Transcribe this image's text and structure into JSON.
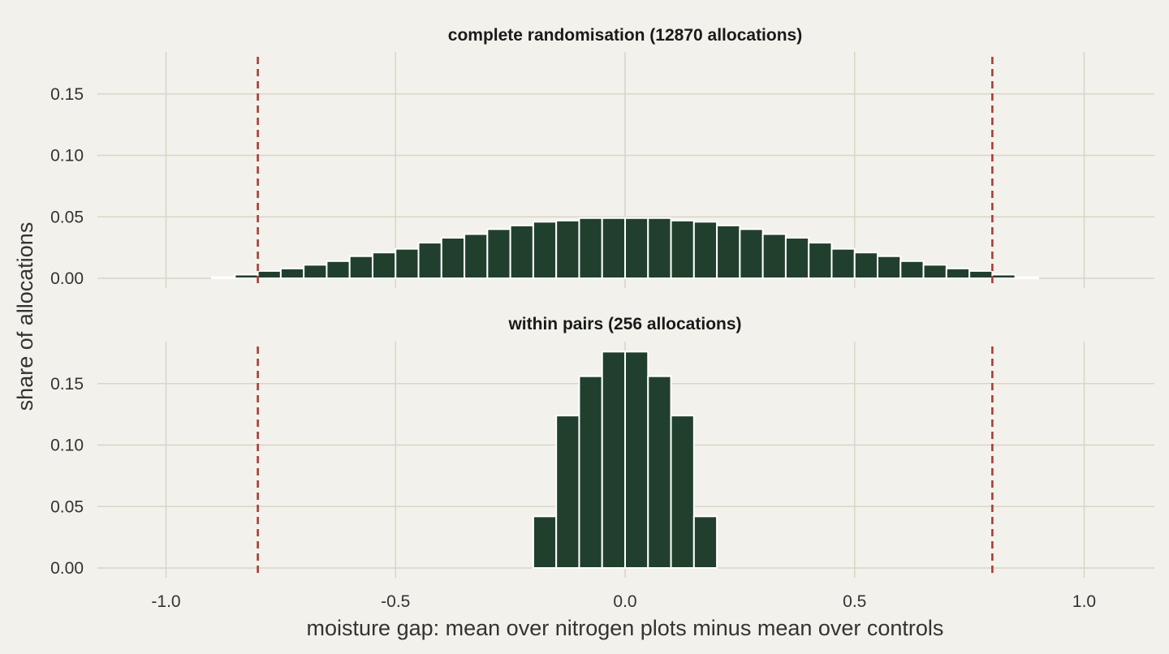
{
  "colors": {
    "background": "#f3f1eb",
    "grid": "#d8d6c4",
    "bar": "#20402d",
    "bar_outline": "#ffffff",
    "reference_line": "#b03a32"
  },
  "chart_data": {
    "type": "bar",
    "xlabel": "moisture gap: mean over nitrogen plots minus mean over controls",
    "ylabel": "share of allocations",
    "xlim": [
      -1.15,
      1.15
    ],
    "ylim": [
      0,
      0.18
    ],
    "x_ticks": [
      "-1.0",
      "-0.5",
      "0.0",
      "0.5",
      "1.0"
    ],
    "x_tick_values": [
      -1.0,
      -0.5,
      0.0,
      0.5,
      1.0
    ],
    "y_ticks": [
      "0.00",
      "0.05",
      "0.10",
      "0.15"
    ],
    "y_tick_values": [
      0,
      0.05,
      0.1,
      0.15
    ],
    "bin_width": 0.05,
    "reference_lines": [
      -0.8,
      0.8
    ],
    "grid": true,
    "panels": [
      {
        "title": "complete randomisation (12870 allocations)",
        "x": [
          -0.875,
          -0.825,
          -0.775,
          -0.725,
          -0.675,
          -0.625,
          -0.575,
          -0.525,
          -0.475,
          -0.425,
          -0.375,
          -0.325,
          -0.275,
          -0.225,
          -0.175,
          -0.125,
          -0.075,
          -0.025,
          0.025,
          0.075,
          0.125,
          0.175,
          0.225,
          0.275,
          0.325,
          0.375,
          0.425,
          0.475,
          0.525,
          0.575,
          0.625,
          0.675,
          0.725,
          0.775,
          0.825,
          0.875
        ],
        "values": [
          0.001,
          0.003,
          0.006,
          0.008,
          0.011,
          0.014,
          0.018,
          0.021,
          0.024,
          0.029,
          0.033,
          0.036,
          0.04,
          0.043,
          0.046,
          0.047,
          0.049,
          0.049,
          0.049,
          0.049,
          0.047,
          0.046,
          0.043,
          0.04,
          0.036,
          0.033,
          0.029,
          0.024,
          0.021,
          0.018,
          0.014,
          0.011,
          0.008,
          0.006,
          0.003,
          0.001
        ]
      },
      {
        "title": "within pairs (256 allocations)",
        "x": [
          -0.175,
          -0.125,
          -0.075,
          -0.025,
          0.025,
          0.075,
          0.125,
          0.175
        ],
        "values": [
          0.042,
          0.124,
          0.156,
          0.176,
          0.176,
          0.156,
          0.124,
          0.042
        ]
      }
    ]
  }
}
